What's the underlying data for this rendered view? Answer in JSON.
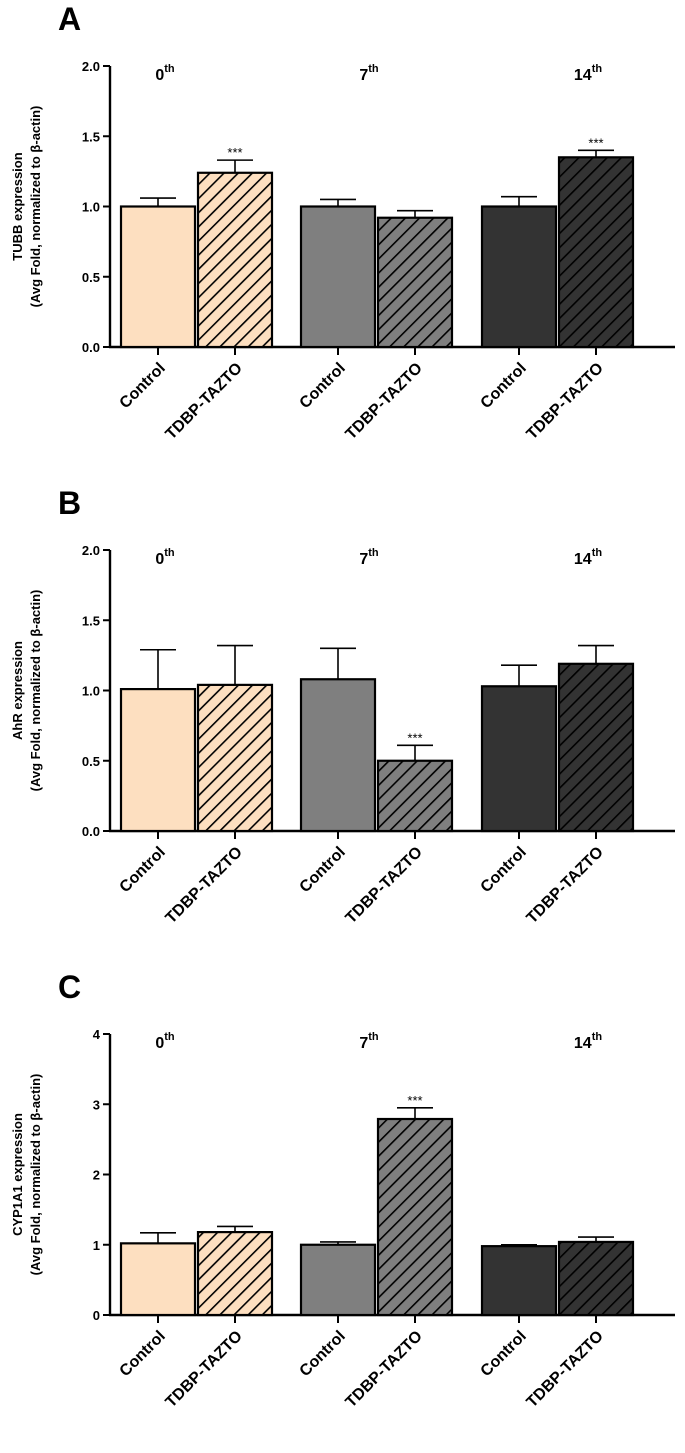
{
  "chart_data": [
    {
      "type": "bar",
      "panel": "A",
      "ylabel_line1": "TUBB expression",
      "ylabel_line2": "(Avg Fold, normalized to β-actin)",
      "ylim": [
        0,
        2.0
      ],
      "yticks": [
        "0.0",
        "0.5",
        "1.0",
        "1.5",
        "2.0"
      ],
      "groups": [
        {
          "label": "0",
          "sup": "th",
          "color": "#FDDFC0",
          "bars": [
            {
              "category": "Control",
              "value": 1.0,
              "error": 0.06,
              "hatched": false,
              "sig": ""
            },
            {
              "category": "TDBP-TAZTO",
              "value": 1.24,
              "error": 0.09,
              "hatched": true,
              "sig": "***"
            }
          ]
        },
        {
          "label": "7",
          "sup": "th",
          "color": "#7F7F7F",
          "bars": [
            {
              "category": "Control",
              "value": 1.0,
              "error": 0.05,
              "hatched": false,
              "sig": ""
            },
            {
              "category": "TDBP-TAZTO",
              "value": 0.92,
              "error": 0.05,
              "hatched": true,
              "sig": ""
            }
          ]
        },
        {
          "label": "14",
          "sup": "th",
          "color": "#333333",
          "bars": [
            {
              "category": "Control",
              "value": 1.0,
              "error": 0.07,
              "hatched": false,
              "sig": ""
            },
            {
              "category": "TDBP-TAZTO",
              "value": 1.35,
              "error": 0.05,
              "hatched": true,
              "sig": "***"
            }
          ]
        }
      ]
    },
    {
      "type": "bar",
      "panel": "B",
      "ylabel_line1": "AhR expression",
      "ylabel_line2": "(Avg Fold, normalized to β-actin)",
      "ylim": [
        0,
        2.0
      ],
      "yticks": [
        "0.0",
        "0.5",
        "1.0",
        "1.5",
        "2.0"
      ],
      "groups": [
        {
          "label": "0",
          "sup": "th",
          "color": "#FDDFC0",
          "bars": [
            {
              "category": "Control",
              "value": 1.01,
              "error": 0.28,
              "hatched": false,
              "sig": ""
            },
            {
              "category": "TDBP-TAZTO",
              "value": 1.04,
              "error": 0.28,
              "hatched": true,
              "sig": ""
            }
          ]
        },
        {
          "label": "7",
          "sup": "th",
          "color": "#7F7F7F",
          "bars": [
            {
              "category": "Control",
              "value": 1.08,
              "error": 0.22,
              "hatched": false,
              "sig": ""
            },
            {
              "category": "TDBP-TAZTO",
              "value": 0.5,
              "error": 0.11,
              "hatched": true,
              "sig": "***"
            }
          ]
        },
        {
          "label": "14",
          "sup": "th",
          "color": "#333333",
          "bars": [
            {
              "category": "Control",
              "value": 1.03,
              "error": 0.15,
              "hatched": false,
              "sig": ""
            },
            {
              "category": "TDBP-TAZTO",
              "value": 1.19,
              "error": 0.13,
              "hatched": true,
              "sig": ""
            }
          ]
        }
      ]
    },
    {
      "type": "bar",
      "panel": "C",
      "ylabel_line1": "CYP1A1 expression",
      "ylabel_line2": "(Avg Fold, normalized to β-actin)",
      "ylim": [
        0,
        4
      ],
      "yticks": [
        "0",
        "1",
        "2",
        "3",
        "4"
      ],
      "groups": [
        {
          "label": "0",
          "sup": "th",
          "color": "#FDDFC0",
          "bars": [
            {
              "category": "Control",
              "value": 1.02,
              "error": 0.15,
              "hatched": false,
              "sig": ""
            },
            {
              "category": "TDBP-TAZTO",
              "value": 1.18,
              "error": 0.08,
              "hatched": true,
              "sig": ""
            }
          ]
        },
        {
          "label": "7",
          "sup": "th",
          "color": "#7F7F7F",
          "bars": [
            {
              "category": "Control",
              "value": 1.0,
              "error": 0.04,
              "hatched": false,
              "sig": ""
            },
            {
              "category": "TDBP-TAZTO",
              "value": 2.79,
              "error": 0.16,
              "hatched": true,
              "sig": "***"
            }
          ]
        },
        {
          "label": "14",
          "sup": "th",
          "color": "#333333",
          "bars": [
            {
              "category": "Control",
              "value": 0.98,
              "error": 0.02,
              "hatched": false,
              "sig": ""
            },
            {
              "category": "TDBP-TAZTO",
              "value": 1.04,
              "error": 0.07,
              "hatched": true,
              "sig": ""
            }
          ]
        }
      ]
    }
  ]
}
